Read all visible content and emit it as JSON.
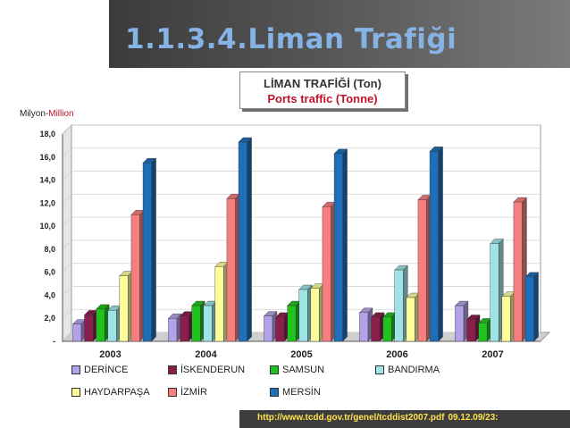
{
  "slide": {
    "title": "1.1.3.4.Liman Trafiği",
    "footer_url": "http://www.tcdd.gov.tr/genel/tcddist2007.pdf",
    "footer_date": "09.12.09/23:"
  },
  "chart_data": {
    "type": "bar",
    "title": "LİMAN TRAFİĞİ (Ton)",
    "subtitle": "Ports traffic (Tonne)",
    "ylabel_tr": "Milyon-",
    "ylabel_en": "Million",
    "categories": [
      "2003",
      "2004",
      "2005",
      "2006",
      "2007"
    ],
    "ylim": [
      0,
      18
    ],
    "yticks": [
      "-",
      "2,0",
      "4,0",
      "6,0",
      "8,0",
      "10,0",
      "12,0",
      "14,0",
      "16,0",
      "18,0"
    ],
    "grid": true,
    "legend_position": "bottom",
    "series": [
      {
        "name": "DERİNCE",
        "color": "#b3a2e8",
        "values": [
          1.5,
          2.0,
          2.2,
          2.5,
          3.1
        ]
      },
      {
        "name": "İSKENDERUN",
        "color": "#8a1f4d",
        "values": [
          2.3,
          2.2,
          2.1,
          2.1,
          1.9
        ]
      },
      {
        "name": "SAMSUN",
        "color": "#1fc21f",
        "values": [
          2.8,
          3.1,
          3.1,
          2.1,
          1.6
        ]
      },
      {
        "name": "BANDIRMA",
        "color": "#9ee3e6",
        "values": [
          2.7,
          3.1,
          4.5,
          6.2,
          8.5
        ]
      },
      {
        "name": "HAYDARPAŞA",
        "color": "#fdfd9c",
        "values": [
          5.7,
          6.5,
          4.6,
          3.8,
          3.9
        ]
      },
      {
        "name": "İZMİR",
        "color": "#f57f7f",
        "values": [
          11.0,
          12.4,
          11.7,
          12.3,
          12.1
        ]
      },
      {
        "name": "MERSİN",
        "color": "#1e6fb8",
        "values": [
          15.5,
          17.3,
          16.3,
          16.5,
          5.6
        ]
      }
    ]
  }
}
